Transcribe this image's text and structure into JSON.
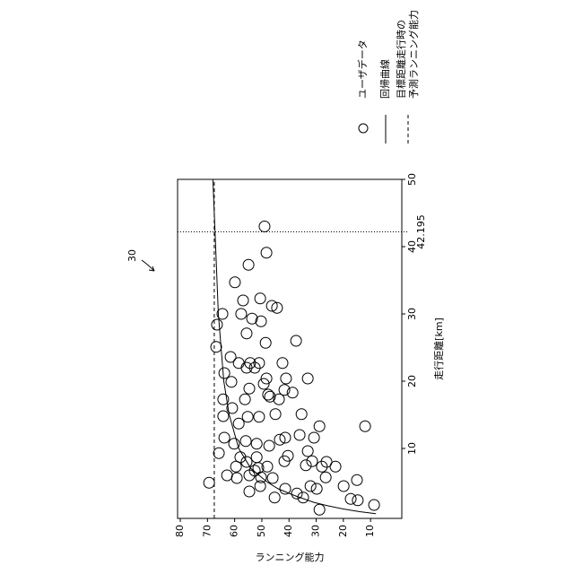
{
  "chart_data": {
    "type": "scatter",
    "reference_numeral": "30",
    "xlabel": "走行距離[km]",
    "ylabel": "ランニング能力",
    "xlim": [
      -0.4,
      50
    ],
    "ylim": [
      -1.5,
      81
    ],
    "xticks": [
      10,
      20,
      30,
      40,
      50
    ],
    "yticks": [
      10,
      20,
      30,
      40,
      50,
      60,
      70,
      80
    ],
    "series": [
      {
        "name": "ユーザデータ",
        "type": "scatter",
        "color": "#000",
        "x": [
          4.9,
          25.1,
          28.4,
          30.0,
          9.3,
          21.2,
          17.3,
          14.8,
          11.6,
          6.0,
          23.6,
          19.9,
          34.7,
          16.0,
          10.7,
          7.3,
          5.6,
          8.7,
          13.7,
          22.7,
          30.0,
          32.0,
          22.0,
          27.1,
          17.3,
          11.1,
          8.0,
          14.7,
          3.6,
          6.0,
          22.7,
          37.3,
          18.9,
          29.3,
          22.0,
          6.7,
          8.7,
          10.7,
          7.1,
          14.7,
          22.7,
          4.4,
          5.7,
          19.6,
          43.0,
          28.9,
          32.3,
          7.3,
          18.0,
          25.7,
          20.4,
          39.1,
          10.4,
          17.7,
          5.6,
          31.2,
          2.7,
          15.1,
          30.9,
          17.3,
          11.3,
          22.7,
          8.1,
          18.7,
          4.0,
          11.6,
          8.9,
          20.4,
          18.3,
          26.0,
          3.3,
          12.0,
          15.1,
          2.7,
          7.5,
          20.4,
          9.6,
          4.4,
          8.1,
          11.6,
          4.0,
          13.3,
          0.9,
          7.3,
          5.7,
          8.0,
          7.3,
          4.4,
          2.5,
          5.3,
          2.3,
          13.3,
          1.6
        ],
        "values": [
          69.4,
          66.8,
          66.5,
          64.5,
          65.8,
          63.8,
          64.2,
          64.2,
          63.8,
          62.8,
          61.5,
          61.2,
          59.9,
          60.9,
          60.2,
          59.5,
          59.2,
          57.9,
          58.5,
          58.5,
          57.6,
          56.9,
          55.6,
          55.6,
          56.2,
          55.9,
          55.6,
          55.2,
          54.6,
          54.6,
          54.3,
          54.9,
          54.6,
          53.6,
          52.6,
          52.6,
          51.9,
          51.9,
          51.3,
          51.0,
          51.0,
          50.6,
          50.3,
          49.3,
          49.0,
          50.3,
          50.6,
          48.0,
          47.7,
          48.6,
          48.3,
          48.3,
          47.3,
          47.0,
          46.0,
          46.3,
          45.3,
          45.0,
          44.4,
          43.7,
          43.4,
          42.4,
          41.7,
          41.7,
          41.4,
          41.4,
          40.4,
          41.1,
          38.7,
          37.4,
          37.1,
          36.1,
          35.4,
          34.8,
          33.8,
          33.1,
          33.1,
          32.1,
          31.5,
          30.8,
          29.8,
          28.8,
          28.8,
          27.9,
          26.5,
          26.2,
          22.9,
          19.9,
          17.3,
          15.0,
          14.7,
          12.0,
          8.7
        ]
      },
      {
        "name": "回帰曲線",
        "type": "line",
        "color": "#000",
        "x": [
          0.3,
          0.6,
          1,
          1.5,
          2,
          3,
          4,
          5,
          7,
          10,
          15,
          20,
          30,
          40,
          50
        ],
        "values": [
          8,
          14,
          20,
          26,
          31,
          38,
          44,
          48,
          54,
          58.5,
          62,
          64,
          66,
          67,
          68
        ]
      },
      {
        "name": [
          "目標距離走行時の",
          "予測ランニング能力"
        ],
        "type": "hline",
        "color": "#000",
        "value": 67.5
      }
    ],
    "target_distance": 42.195
  }
}
